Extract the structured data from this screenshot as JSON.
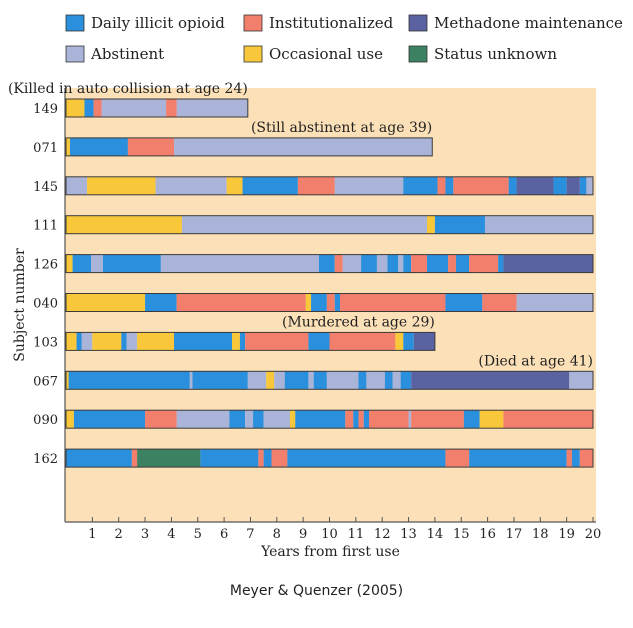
{
  "credit": "Meyer & Quenzer (2005)",
  "colors": {
    "panel_bg": "#fce1b8",
    "daily_illicit_opioid": "#2a8fdc",
    "institutionalized": "#f27e6c",
    "methadone_maintenance": "#5b62a1",
    "abstinent": "#aab4d8",
    "occasional_use": "#f9c83a",
    "status_unknown": "#3b8162"
  },
  "chart_data": {
    "type": "bar",
    "orientation": "horizontal-timeline",
    "title": "",
    "xlabel": "Years from first use",
    "ylabel": "Subject number",
    "xlim": [
      0,
      20
    ],
    "xticks": [
      1,
      2,
      3,
      4,
      5,
      6,
      7,
      8,
      9,
      10,
      11,
      12,
      13,
      14,
      15,
      16,
      17,
      18,
      19,
      20
    ],
    "grid": false,
    "legend": {
      "placement": "top",
      "entries": [
        {
          "key": "daily_illicit_opioid",
          "label": "Daily illicit opioid"
        },
        {
          "key": "institutionalized",
          "label": "Institutionalized"
        },
        {
          "key": "methadone_maintenance",
          "label": "Methadone maintenance"
        },
        {
          "key": "abstinent",
          "label": "Abstinent"
        },
        {
          "key": "occasional_use",
          "label": "Occasional use"
        },
        {
          "key": "status_unknown",
          "label": "Status unknown"
        }
      ]
    },
    "subjects": [
      {
        "id": "149",
        "annotation": "(Killed in auto collision at age 24)",
        "segments": [
          [
            "occasional_use",
            0,
            0.7
          ],
          [
            "daily_illicit_opioid",
            0.7,
            1.05
          ],
          [
            "institutionalized",
            1.05,
            1.35
          ],
          [
            "abstinent",
            1.35,
            3.8
          ],
          [
            "institutionalized",
            3.8,
            4.2
          ],
          [
            "abstinent",
            4.2,
            6.9
          ]
        ]
      },
      {
        "id": "071",
        "annotation": "(Still abstinent at age 39)",
        "segments": [
          [
            "occasional_use",
            0,
            0.15
          ],
          [
            "daily_illicit_opioid",
            0.15,
            2.35
          ],
          [
            "institutionalized",
            2.35,
            4.1
          ],
          [
            "abstinent",
            4.1,
            13.9
          ]
        ]
      },
      {
        "id": "145",
        "annotation": "",
        "segments": [
          [
            "abstinent",
            0,
            0.8
          ],
          [
            "occasional_use",
            0.8,
            3.4
          ],
          [
            "abstinent",
            3.4,
            6.1
          ],
          [
            "occasional_use",
            6.1,
            6.7
          ],
          [
            "daily_illicit_opioid",
            6.7,
            8.8
          ],
          [
            "institutionalized",
            8.8,
            10.2
          ],
          [
            "abstinent",
            10.2,
            12.8
          ],
          [
            "daily_illicit_opioid",
            12.8,
            14.1
          ],
          [
            "institutionalized",
            14.1,
            14.4
          ],
          [
            "daily_illicit_opioid",
            14.4,
            14.7
          ],
          [
            "institutionalized",
            14.7,
            16.8
          ],
          [
            "daily_illicit_opioid",
            16.8,
            17.1
          ],
          [
            "methadone_maintenance",
            17.1,
            18.5
          ],
          [
            "daily_illicit_opioid",
            18.5,
            19.0
          ],
          [
            "methadone_maintenance",
            19.0,
            19.5
          ],
          [
            "daily_illicit_opioid",
            19.5,
            19.75
          ],
          [
            "abstinent",
            19.75,
            20
          ]
        ]
      },
      {
        "id": "111",
        "annotation": "",
        "segments": [
          [
            "occasional_use",
            0,
            4.4
          ],
          [
            "abstinent",
            4.4,
            13.7
          ],
          [
            "occasional_use",
            13.7,
            14.0
          ],
          [
            "daily_illicit_opioid",
            14.0,
            15.9
          ],
          [
            "abstinent",
            15.9,
            20
          ]
        ]
      },
      {
        "id": "126",
        "annotation": "",
        "segments": [
          [
            "occasional_use",
            0,
            0.25
          ],
          [
            "daily_illicit_opioid",
            0.25,
            0.95
          ],
          [
            "abstinent",
            0.95,
            1.4
          ],
          [
            "daily_illicit_opioid",
            1.4,
            3.6
          ],
          [
            "abstinent",
            3.6,
            9.6
          ],
          [
            "daily_illicit_opioid",
            9.6,
            10.2
          ],
          [
            "institutionalized",
            10.2,
            10.5
          ],
          [
            "abstinent",
            10.5,
            11.2
          ],
          [
            "daily_illicit_opioid",
            11.2,
            11.8
          ],
          [
            "abstinent",
            11.8,
            12.2
          ],
          [
            "daily_illicit_opioid",
            12.2,
            12.6
          ],
          [
            "abstinent",
            12.6,
            12.8
          ],
          [
            "daily_illicit_opioid",
            12.8,
            13.1
          ],
          [
            "institutionalized",
            13.1,
            13.7
          ],
          [
            "daily_illicit_opioid",
            13.7,
            14.5
          ],
          [
            "institutionalized",
            14.5,
            14.8
          ],
          [
            "daily_illicit_opioid",
            14.8,
            15.3
          ],
          [
            "institutionalized",
            15.3,
            16.4
          ],
          [
            "daily_illicit_opioid",
            16.4,
            16.6
          ],
          [
            "methadone_maintenance",
            16.6,
            20
          ]
        ]
      },
      {
        "id": "040",
        "annotation": "",
        "segments": [
          [
            "occasional_use",
            0,
            3.0
          ],
          [
            "daily_illicit_opioid",
            3.0,
            4.2
          ],
          [
            "institutionalized",
            4.2,
            9.1
          ],
          [
            "occasional_use",
            9.1,
            9.3
          ],
          [
            "daily_illicit_opioid",
            9.3,
            9.9
          ],
          [
            "institutionalized",
            9.9,
            10.2
          ],
          [
            "daily_illicit_opioid",
            10.2,
            10.4
          ],
          [
            "institutionalized",
            10.4,
            14.4
          ],
          [
            "daily_illicit_opioid",
            14.4,
            15.8
          ],
          [
            "institutionalized",
            15.8,
            17.1
          ],
          [
            "abstinent",
            17.1,
            20
          ]
        ]
      },
      {
        "id": "103",
        "annotation": "(Murdered at age 29)",
        "segments": [
          [
            "occasional_use",
            0,
            0.4
          ],
          [
            "daily_illicit_opioid",
            0.4,
            0.6
          ],
          [
            "abstinent",
            0.6,
            1.0
          ],
          [
            "occasional_use",
            1.0,
            2.1
          ],
          [
            "daily_illicit_opioid",
            2.1,
            2.3
          ],
          [
            "abstinent",
            2.3,
            2.7
          ],
          [
            "occasional_use",
            2.7,
            4.1
          ],
          [
            "daily_illicit_opioid",
            4.1,
            6.3
          ],
          [
            "occasional_use",
            6.3,
            6.6
          ],
          [
            "daily_illicit_opioid",
            6.6,
            6.8
          ],
          [
            "institutionalized",
            6.8,
            9.2
          ],
          [
            "daily_illicit_opioid",
            9.2,
            10.0
          ],
          [
            "institutionalized",
            10.0,
            12.5
          ],
          [
            "occasional_use",
            12.5,
            12.8
          ],
          [
            "daily_illicit_opioid",
            12.8,
            13.2
          ],
          [
            "methadone_maintenance",
            13.2,
            14.0
          ]
        ]
      },
      {
        "id": "067",
        "annotation": "(Died at age 41)",
        "segments": [
          [
            "occasional_use",
            0,
            0.1
          ],
          [
            "daily_illicit_opioid",
            0.1,
            4.7
          ],
          [
            "abstinent",
            4.7,
            4.8
          ],
          [
            "daily_illicit_opioid",
            4.8,
            6.9
          ],
          [
            "abstinent",
            6.9,
            7.6
          ],
          [
            "occasional_use",
            7.6,
            7.9
          ],
          [
            "abstinent",
            7.9,
            8.3
          ],
          [
            "daily_illicit_opioid",
            8.3,
            9.2
          ],
          [
            "abstinent",
            9.2,
            9.4
          ],
          [
            "daily_illicit_opioid",
            9.4,
            9.9
          ],
          [
            "abstinent",
            9.9,
            11.1
          ],
          [
            "daily_illicit_opioid",
            11.1,
            11.4
          ],
          [
            "abstinent",
            11.4,
            12.1
          ],
          [
            "daily_illicit_opioid",
            12.1,
            12.4
          ],
          [
            "abstinent",
            12.4,
            12.7
          ],
          [
            "daily_illicit_opioid",
            12.7,
            13.1
          ],
          [
            "methadone_maintenance",
            13.1,
            19.1
          ],
          [
            "abstinent",
            19.1,
            20
          ]
        ]
      },
      {
        "id": "090",
        "annotation": "",
        "segments": [
          [
            "occasional_use",
            0,
            0.3
          ],
          [
            "daily_illicit_opioid",
            0.3,
            3.0
          ],
          [
            "institutionalized",
            3.0,
            4.2
          ],
          [
            "abstinent",
            4.2,
            6.2
          ],
          [
            "daily_illicit_opioid",
            6.2,
            6.8
          ],
          [
            "abstinent",
            6.8,
            7.1
          ],
          [
            "daily_illicit_opioid",
            7.1,
            7.5
          ],
          [
            "abstinent",
            7.5,
            8.5
          ],
          [
            "occasional_use",
            8.5,
            8.7
          ],
          [
            "daily_illicit_opioid",
            8.7,
            10.6
          ],
          [
            "institutionalized",
            10.6,
            10.9
          ],
          [
            "daily_illicit_opioid",
            10.9,
            11.1
          ],
          [
            "institutionalized",
            11.1,
            11.3
          ],
          [
            "daily_illicit_opioid",
            11.3,
            11.5
          ],
          [
            "institutionalized",
            11.5,
            13.0
          ],
          [
            "abstinent",
            13.0,
            13.1
          ],
          [
            "institutionalized",
            13.1,
            15.1
          ],
          [
            "daily_illicit_opioid",
            15.1,
            15.7
          ],
          [
            "occasional_use",
            15.7,
            16.6
          ],
          [
            "institutionalized",
            16.6,
            20
          ]
        ]
      },
      {
        "id": "162",
        "annotation": "",
        "segments": [
          [
            "daily_illicit_opioid",
            0,
            2.5
          ],
          [
            "institutionalized",
            2.5,
            2.7
          ],
          [
            "status_unknown",
            2.7,
            5.1
          ],
          [
            "daily_illicit_opioid",
            5.1,
            7.3
          ],
          [
            "institutionalized",
            7.3,
            7.5
          ],
          [
            "daily_illicit_opioid",
            7.5,
            7.8
          ],
          [
            "institutionalized",
            7.8,
            8.4
          ],
          [
            "daily_illicit_opioid",
            8.4,
            14.4
          ],
          [
            "institutionalized",
            14.4,
            15.3
          ],
          [
            "daily_illicit_opioid",
            15.3,
            19.0
          ],
          [
            "institutionalized",
            19.0,
            19.2
          ],
          [
            "daily_illicit_opioid",
            19.2,
            19.5
          ],
          [
            "institutionalized",
            19.5,
            20
          ]
        ]
      }
    ]
  }
}
